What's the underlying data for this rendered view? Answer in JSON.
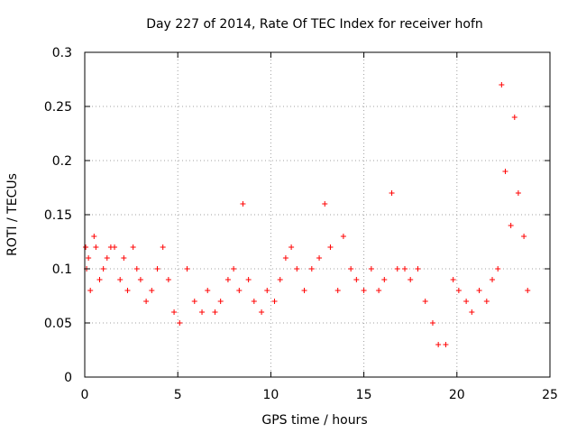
{
  "chart_data": {
    "type": "scatter",
    "title": "Day 227 of 2014, Rate Of TEC Index for receiver hofn",
    "xlabel": "GPS time / hours",
    "ylabel": "ROTI / TECUs",
    "xlim": [
      0,
      25
    ],
    "ylim": [
      0,
      0.3
    ],
    "x_ticks": [
      "0",
      "5",
      "10",
      "15",
      "20",
      "25"
    ],
    "y_ticks": [
      "0",
      "0.05",
      "0.1",
      "0.15",
      "0.2",
      "0.25",
      "0.3"
    ],
    "grid": true,
    "marker": "+",
    "color": "#ff0000",
    "series": [
      {
        "x": [
          0.05,
          0.1,
          0.2,
          0.3,
          0.5,
          0.6,
          0.8,
          1.0,
          1.2,
          1.4,
          1.6,
          1.9,
          2.1,
          2.3,
          2.6,
          2.8,
          3.0,
          3.3,
          3.6,
          3.9,
          4.2,
          4.5,
          4.8,
          5.1,
          5.5,
          5.9,
          6.3,
          6.6,
          7.0,
          7.3,
          7.7,
          8.0,
          8.3,
          8.5,
          8.8,
          9.1,
          9.5,
          9.8,
          10.2,
          10.5,
          10.8,
          11.1,
          11.4,
          11.8,
          12.2,
          12.6,
          12.9,
          13.2,
          13.6,
          13.9,
          14.3,
          14.6,
          15.0,
          15.4,
          15.8,
          16.1,
          16.5,
          16.8,
          17.2,
          17.5,
          17.9,
          18.3,
          18.7,
          19.0,
          19.4,
          19.8,
          20.1,
          20.5,
          20.8,
          21.2,
          21.6,
          21.9,
          22.2,
          22.4,
          22.6,
          22.9,
          23.1,
          23.3,
          23.6,
          23.8
        ],
        "y": [
          0.12,
          0.1,
          0.11,
          0.08,
          0.13,
          0.12,
          0.09,
          0.1,
          0.11,
          0.12,
          0.12,
          0.09,
          0.11,
          0.08,
          0.12,
          0.1,
          0.09,
          0.07,
          0.08,
          0.1,
          0.12,
          0.09,
          0.06,
          0.05,
          0.1,
          0.07,
          0.06,
          0.08,
          0.06,
          0.07,
          0.09,
          0.1,
          0.08,
          0.16,
          0.09,
          0.07,
          0.06,
          0.08,
          0.07,
          0.09,
          0.11,
          0.12,
          0.1,
          0.08,
          0.1,
          0.11,
          0.16,
          0.12,
          0.08,
          0.13,
          0.1,
          0.09,
          0.08,
          0.1,
          0.08,
          0.09,
          0.17,
          0.1,
          0.1,
          0.09,
          0.1,
          0.07,
          0.05,
          0.03,
          0.03,
          0.09,
          0.08,
          0.07,
          0.06,
          0.08,
          0.07,
          0.09,
          0.1,
          0.27,
          0.19,
          0.14,
          0.24,
          0.17,
          0.13,
          0.08
        ]
      }
    ]
  }
}
